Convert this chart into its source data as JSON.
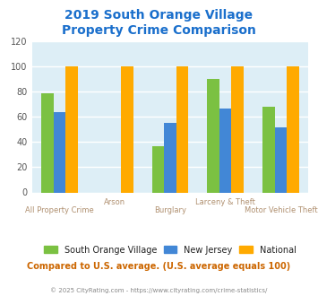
{
  "title": "2019 South Orange Village\nProperty Crime Comparison",
  "title_color": "#1a6fcc",
  "categories": [
    "All Property Crime",
    "Arson",
    "Burglary",
    "Larceny & Theft",
    "Motor Vehicle Theft"
  ],
  "xlabel_stagger": [
    "Arson",
    "Larceny & Theft"
  ],
  "series": {
    "South Orange Village": [
      79,
      0,
      37,
      90,
      68
    ],
    "New Jersey": [
      64,
      0,
      55,
      67,
      52
    ],
    "National": [
      100,
      100,
      100,
      100,
      100
    ]
  },
  "colors": {
    "South Orange Village": "#7bc142",
    "New Jersey": "#4287d6",
    "National": "#ffaa00"
  },
  "ylim": [
    0,
    120
  ],
  "yticks": [
    0,
    20,
    40,
    60,
    80,
    100,
    120
  ],
  "bg_color": "#ddeef6",
  "grid_color": "#ffffff",
  "xlabel_color": "#b09070",
  "note_text": "Compared to U.S. average. (U.S. average equals 100)",
  "note_color": "#cc6600",
  "footer_text": "© 2025 CityRating.com - https://www.cityrating.com/crime-statistics/",
  "footer_color": "#888888",
  "legend_labels": [
    "South Orange Village",
    "New Jersey",
    "National"
  ],
  "bar_width": 0.22
}
